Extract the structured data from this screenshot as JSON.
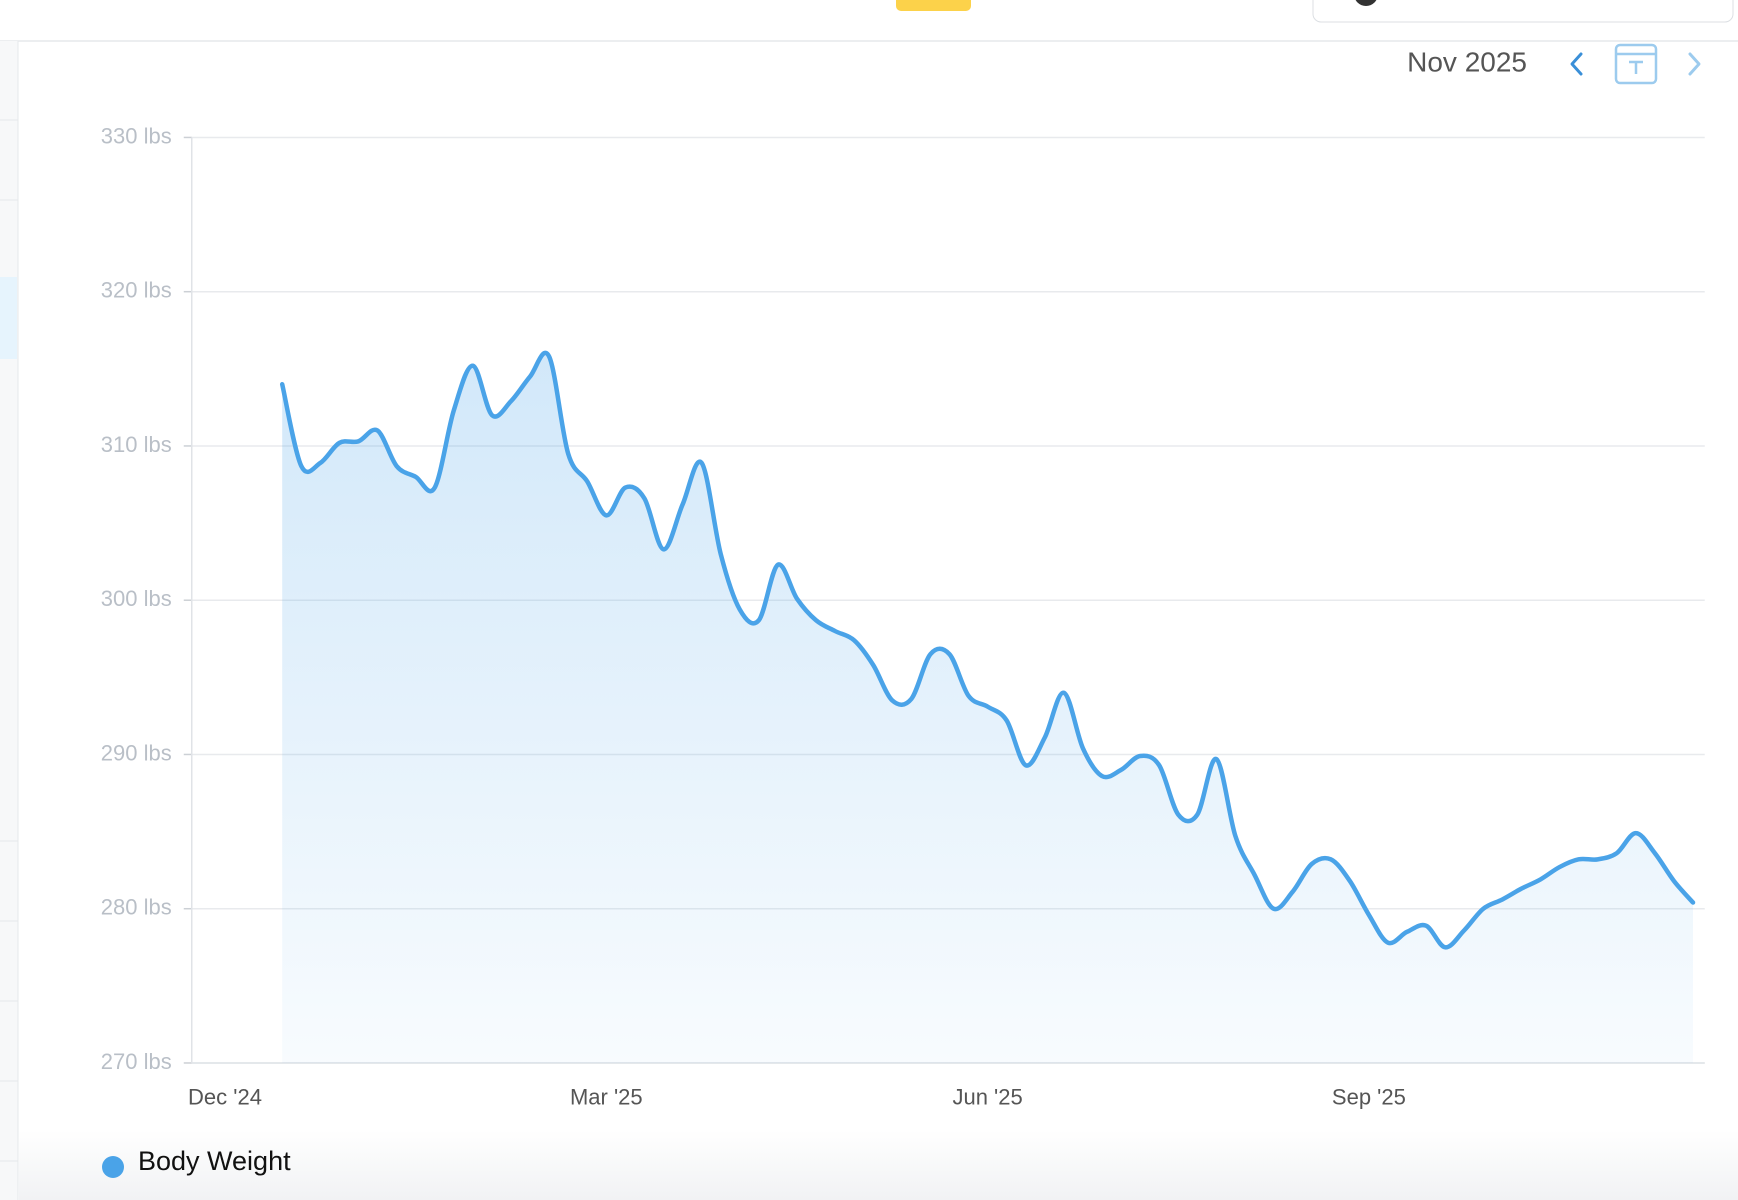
{
  "header": {
    "month": "Nov 2025"
  },
  "chart_data": {
    "type": "line",
    "categories": [
      "Dec '24",
      null,
      null,
      null,
      null,
      null,
      null,
      null,
      null,
      null,
      null,
      null,
      null,
      null,
      null,
      null,
      null,
      null,
      null,
      null,
      "Mar '25",
      null,
      null,
      null,
      null,
      null,
      null,
      null,
      null,
      null,
      null,
      null,
      null,
      null,
      null,
      null,
      null,
      null,
      null,
      null,
      "Jun '25",
      null,
      null,
      null,
      null,
      null,
      null,
      null,
      null,
      null,
      null,
      null,
      null,
      null,
      null,
      null,
      null,
      null,
      null,
      null,
      "Sep '25",
      null,
      null,
      null,
      null,
      null,
      null,
      null,
      null,
      null,
      null,
      null,
      null,
      null,
      null,
      null,
      null,
      null
    ],
    "series": [
      {
        "name": "Body Weight",
        "color": "#4aa3e8",
        "values": [
          null,
          null,
          null,
          314.0,
          308.7,
          308.9,
          310.2,
          310.3,
          311.0,
          308.7,
          308.0,
          307.3,
          312.3,
          315.2,
          312.0,
          312.9,
          314.5,
          315.8,
          309.5,
          307.7,
          305.5,
          307.3,
          306.6,
          303.3,
          306.2,
          308.9,
          303.0,
          299.4,
          298.7,
          302.3,
          300.1,
          298.7,
          298.0,
          297.4,
          295.8,
          293.5,
          293.6,
          296.5,
          296.5,
          293.8,
          293.1,
          292.2,
          289.3,
          291.1,
          294.0,
          290.4,
          288.6,
          289.0,
          289.9,
          289.3,
          286.1,
          286.1,
          289.7,
          284.7,
          282.2,
          280.0,
          281.1,
          282.9,
          283.2,
          281.8,
          279.6,
          277.8,
          278.5,
          278.9,
          277.5,
          278.6,
          280.0,
          280.6,
          281.3,
          281.9,
          282.7,
          283.2,
          283.2,
          283.6,
          284.9,
          283.6,
          281.8,
          280.4
        ]
      }
    ],
    "ylim": [
      270,
      330
    ],
    "yticks": [
      {
        "value": 270,
        "label": "270 lbs"
      },
      {
        "value": 280,
        "label": "280 lbs"
      },
      {
        "value": 290,
        "label": "290 lbs"
      },
      {
        "value": 300,
        "label": "300 lbs"
      },
      {
        "value": 310,
        "label": "310 lbs"
      },
      {
        "value": 320,
        "label": "320 lbs"
      },
      {
        "value": 330,
        "label": "330 lbs"
      }
    ],
    "grid": true
  }
}
